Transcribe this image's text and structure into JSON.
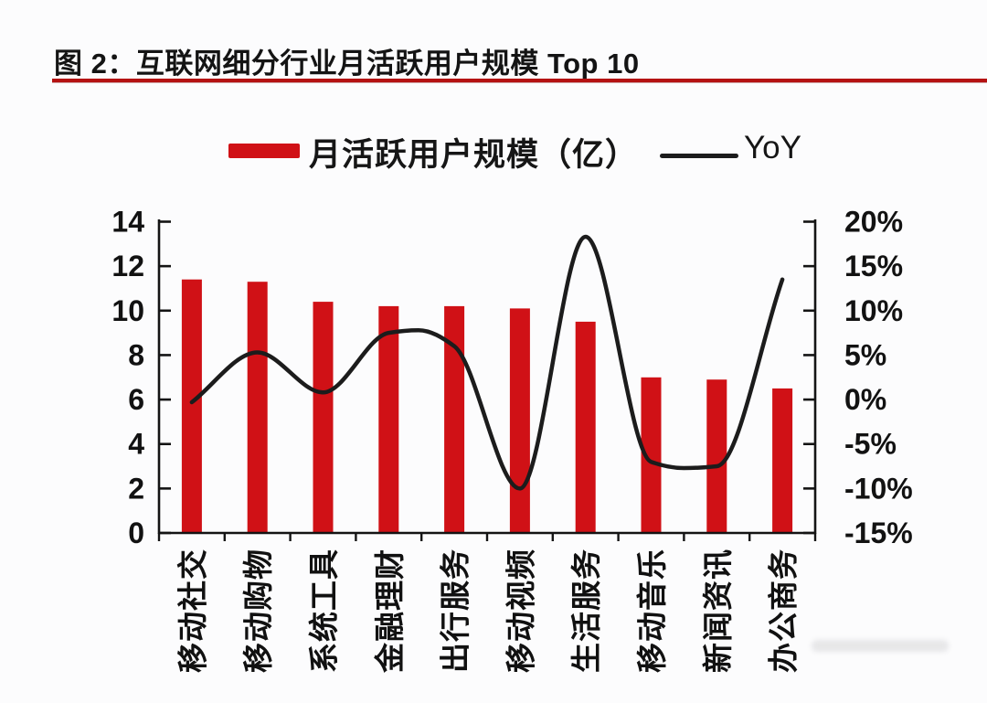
{
  "figure": {
    "title": "图 2：互联网细分行业月活跃用户规模 Top 10",
    "underline_color": "#b51212"
  },
  "legend": {
    "bar_label": "月活跃用户规模（亿）",
    "line_label": "YoY",
    "bar_color": "#d01116",
    "line_color": "#1c1c1c"
  },
  "chart_data": {
    "type": "bar",
    "title": "互联网细分行业月活跃用户规模 Top 10",
    "categories": [
      "移动社交",
      "移动购物",
      "系统工具",
      "金融理财",
      "出行服务",
      "移动视频",
      "生活服务",
      "移动音乐",
      "新闻资讯",
      "办公商务"
    ],
    "series": [
      {
        "name": "月活跃用户规模（亿）",
        "type": "bar",
        "axis": "left",
        "color": "#d01116",
        "values": [
          11.4,
          11.3,
          10.4,
          10.2,
          10.2,
          10.1,
          9.5,
          7.0,
          6.9,
          6.5
        ]
      },
      {
        "name": "YoY",
        "type": "line",
        "axis": "right",
        "color": "#1c1c1c",
        "smoothed": true,
        "values": [
          -0.3,
          5.3,
          0.8,
          7.5,
          6.0,
          -10.0,
          18.3,
          -7.0,
          -7.5,
          13.5
        ]
      }
    ],
    "left_axis": {
      "min": 0,
      "max": 14,
      "tick_step": 2,
      "ticks": [
        0,
        2,
        4,
        6,
        8,
        10,
        12,
        14
      ]
    },
    "right_axis": {
      "min": -15,
      "max": 20,
      "tick_step": 5,
      "tick_labels_top_down": [
        "20%",
        "15%",
        "10%",
        "5%",
        "0%",
        "-5%",
        "-10%",
        "-15%"
      ]
    },
    "grid": false,
    "legend_position": "top",
    "curve_helpers": [
      {
        "after_index": 3,
        "frac": 0.455,
        "value": 7.8
      },
      {
        "after_index": 7,
        "frac": 0.5,
        "value": -7.7
      }
    ]
  }
}
